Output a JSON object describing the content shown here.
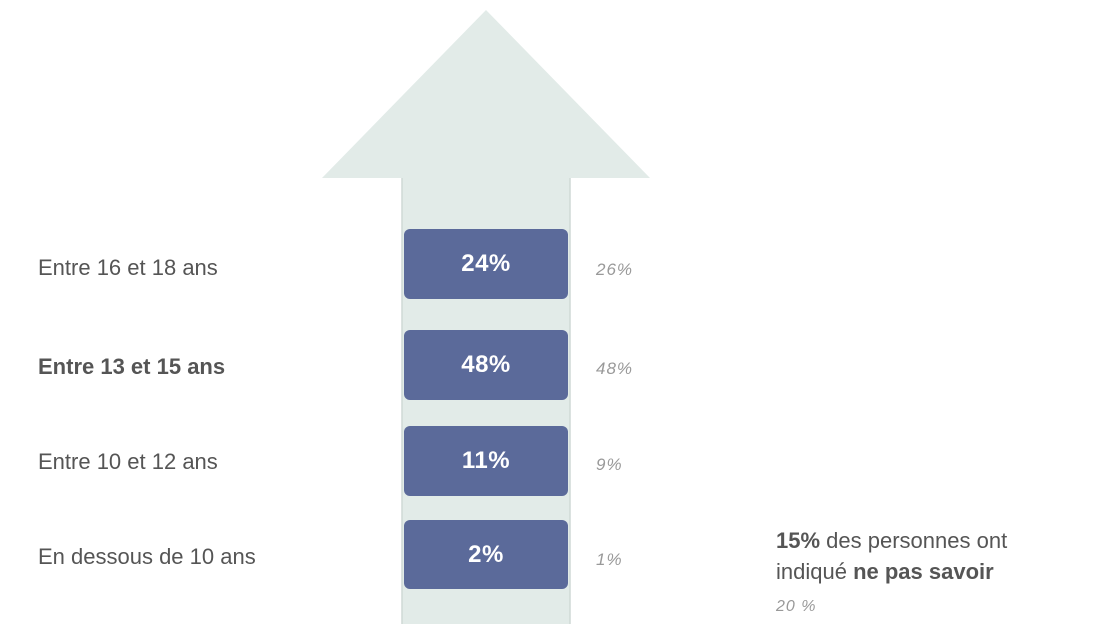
{
  "chart_data": {
    "type": "bar",
    "categories": [
      "Entre 16 et 18 ans",
      "Entre 13 et 15 ans",
      "Entre 10 et 12 ans",
      "En dessous de 10 ans"
    ],
    "series": [
      {
        "values": [
          24,
          48,
          11,
          2
        ],
        "labels": [
          "24%",
          "48%",
          "11%",
          "2%"
        ]
      },
      {
        "values": [
          26,
          48,
          9,
          1
        ],
        "labels": [
          "26%",
          "48%",
          "9%",
          "1%"
        ]
      }
    ],
    "highlighted_category": "Entre 13 et 15 ans",
    "colors": {
      "box": "#5b6a9a",
      "arrow": "#e2ebe8",
      "arrow_edge": "#cfd9d6",
      "previous_value": "#999999",
      "label": "#555555"
    }
  },
  "note": {
    "pct": "15%",
    "text_1": " des personnes ont",
    "text_2": "indiqué ",
    "emph": "ne pas savoir",
    "previous": "20 %"
  }
}
